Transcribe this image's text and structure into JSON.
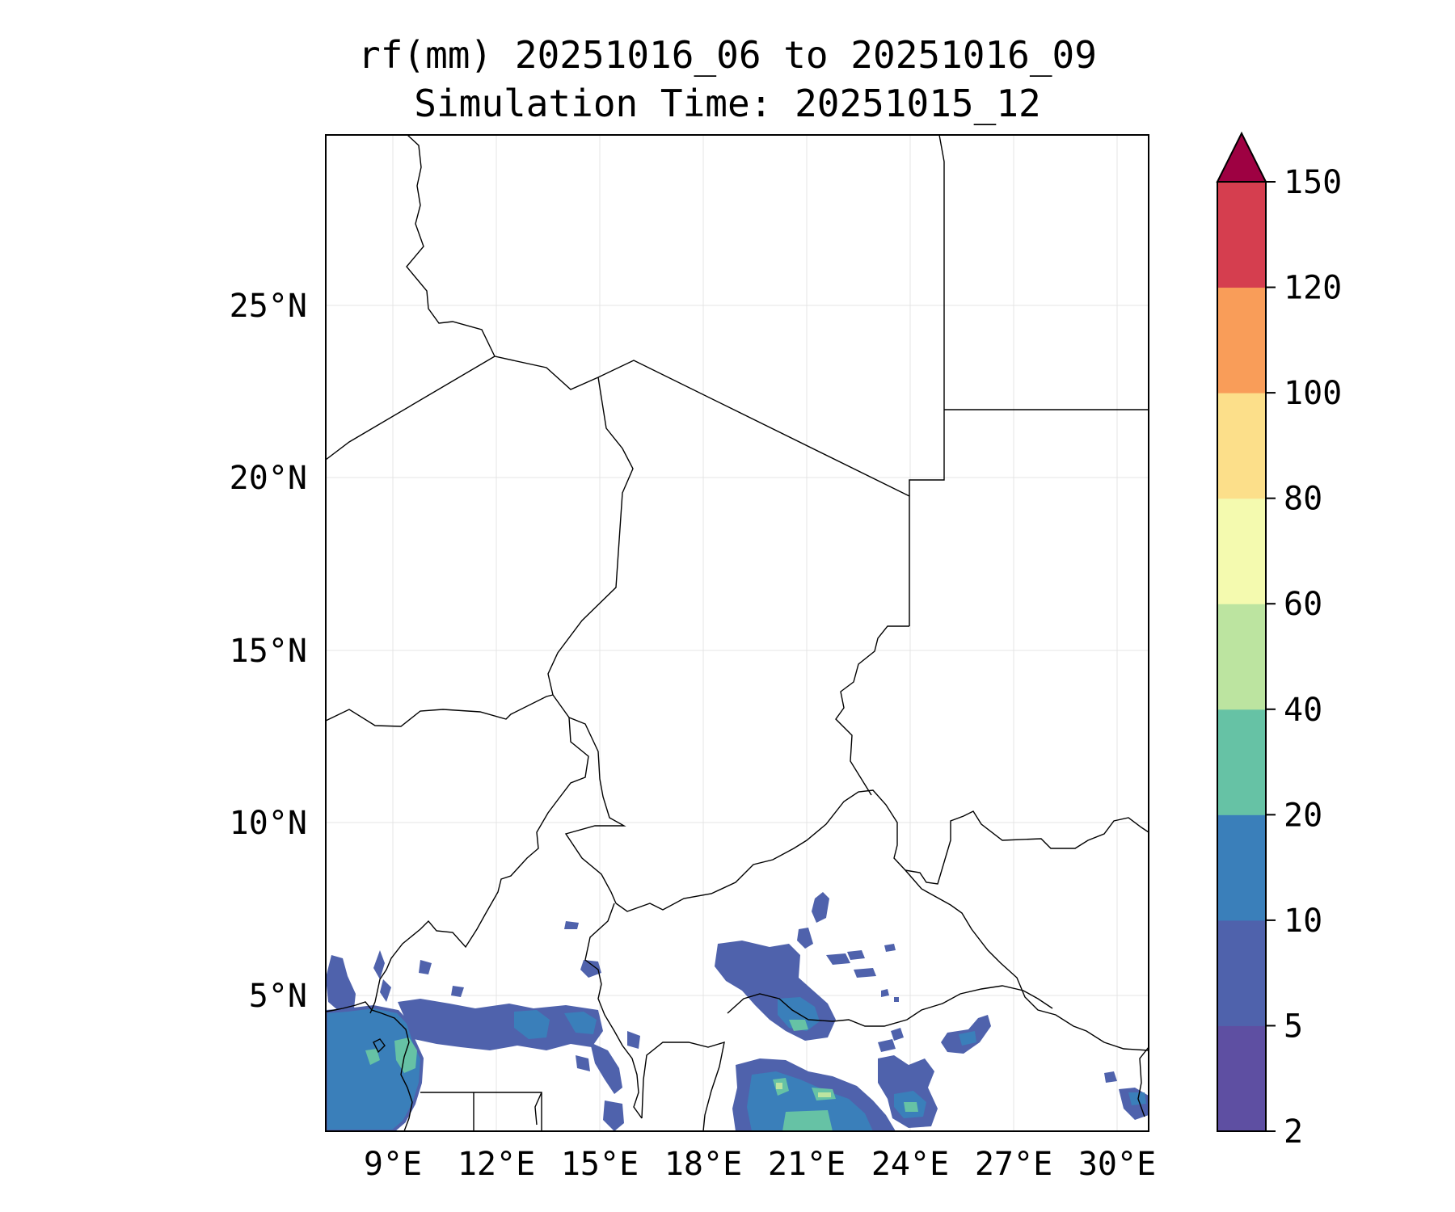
{
  "title": {
    "line1": "rf(mm) 20251016_06 to 20251016_09",
    "line2": "Simulation Time: 20251015_12"
  },
  "map": {
    "lon_ticks": [
      "9°E",
      "12°E",
      "15°E",
      "18°E",
      "21°E",
      "24°E",
      "27°E",
      "30°E"
    ],
    "lat_ticks": [
      "25°N",
      "20°N",
      "15°N",
      "10°N",
      "5°N"
    ],
    "extent": {
      "lon_min": 7.2,
      "lon_max": 31.1,
      "lat_min": 1.0,
      "lat_max": 29.9
    },
    "gridlines": true
  },
  "colorbar": {
    "tick_labels": [
      "2",
      "5",
      "10",
      "20",
      "40",
      "60",
      "80",
      "100",
      "120",
      "150"
    ],
    "levels": [
      2,
      5,
      10,
      20,
      40,
      60,
      80,
      100,
      120,
      150
    ],
    "colors": [
      "#5e4fa2",
      "#4f62ac",
      "#3a7fba",
      "#66c2a5",
      "#bce4a0",
      "#f4faaf",
      "#fcdf8a",
      "#f99d59",
      "#d53e4f",
      "#9e0142"
    ],
    "extend": "max"
  }
}
